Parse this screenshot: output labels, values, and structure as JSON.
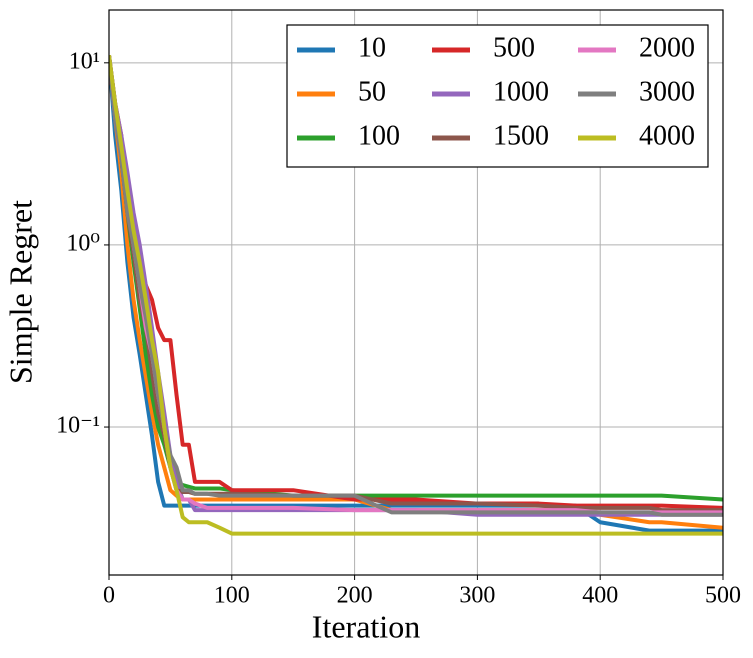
{
  "chart_data": {
    "type": "line",
    "xlabel": "Iteration",
    "ylabel": "Simple Regret",
    "xlim": [
      0,
      500
    ],
    "xticks": [
      0,
      100,
      200,
      300,
      400,
      500
    ],
    "ylim": [
      0.0154,
      19.5
    ],
    "yscale": "log",
    "yticks": [
      {
        "value": 0.1,
        "label": "10⁻¹"
      },
      {
        "value": 1,
        "label": "10⁰"
      },
      {
        "value": 10,
        "label": "10¹"
      }
    ],
    "grid": true,
    "legend": "upper right",
    "legend_columns": 3,
    "x": [
      0,
      5,
      10,
      15,
      20,
      25,
      30,
      35,
      40,
      45,
      50,
      55,
      60,
      65,
      70,
      80,
      90,
      100,
      150,
      200,
      230,
      250,
      300,
      350,
      380,
      400,
      440,
      450,
      500
    ],
    "series": [
      {
        "name": "10",
        "color": "#1f77b4",
        "values": [
          11,
          4,
          2,
          0.8,
          0.4,
          0.25,
          0.15,
          0.09,
          0.05,
          0.037,
          0.037,
          0.037,
          0.037,
          0.037,
          0.037,
          0.037,
          0.037,
          0.037,
          0.037,
          0.037,
          0.037,
          0.037,
          0.037,
          0.037,
          0.037,
          0.03,
          0.027,
          0.027,
          0.027
        ]
      },
      {
        "name": "50",
        "color": "#ff7f0e",
        "values": [
          11,
          5,
          2.5,
          1,
          0.5,
          0.3,
          0.19,
          0.12,
          0.08,
          0.06,
          0.045,
          0.042,
          0.04,
          0.04,
          0.04,
          0.04,
          0.04,
          0.04,
          0.04,
          0.04,
          0.035,
          0.035,
          0.035,
          0.035,
          0.035,
          0.033,
          0.03,
          0.03,
          0.028
        ]
      },
      {
        "name": "100",
        "color": "#2ca02c",
        "values": [
          11,
          6,
          3,
          1.5,
          0.8,
          0.45,
          0.25,
          0.15,
          0.1,
          0.08,
          0.06,
          0.05,
          0.048,
          0.047,
          0.046,
          0.046,
          0.046,
          0.045,
          0.042,
          0.042,
          0.042,
          0.042,
          0.042,
          0.042,
          0.042,
          0.042,
          0.042,
          0.042,
          0.04
        ]
      },
      {
        "name": "500",
        "color": "#d62728",
        "values": [
          11,
          6,
          4,
          2,
          1.2,
          0.8,
          0.6,
          0.5,
          0.35,
          0.3,
          0.3,
          0.15,
          0.08,
          0.08,
          0.05,
          0.05,
          0.05,
          0.045,
          0.045,
          0.04,
          0.04,
          0.04,
          0.038,
          0.038,
          0.037,
          0.037,
          0.037,
          0.037,
          0.036
        ]
      },
      {
        "name": "1000",
        "color": "#9467bd",
        "values": [
          11,
          6,
          4,
          2.5,
          1.5,
          1,
          0.6,
          0.35,
          0.2,
          0.12,
          0.07,
          0.05,
          0.04,
          0.04,
          0.035,
          0.035,
          0.035,
          0.035,
          0.035,
          0.035,
          0.035,
          0.035,
          0.033,
          0.033,
          0.033,
          0.033,
          0.033,
          0.033,
          0.033
        ]
      },
      {
        "name": "1500",
        "color": "#8c564b",
        "values": [
          11,
          5,
          3,
          1.5,
          0.9,
          0.5,
          0.35,
          0.2,
          0.12,
          0.09,
          0.06,
          0.045,
          0.044,
          0.044,
          0.043,
          0.043,
          0.043,
          0.043,
          0.042,
          0.042,
          0.038,
          0.038,
          0.038,
          0.037,
          0.036,
          0.036,
          0.036,
          0.035,
          0.035
        ]
      },
      {
        "name": "2000",
        "color": "#e377c2",
        "values": [
          11,
          5,
          3,
          1.8,
          1,
          0.6,
          0.35,
          0.25,
          0.15,
          0.1,
          0.06,
          0.045,
          0.04,
          0.04,
          0.038,
          0.036,
          0.036,
          0.036,
          0.036,
          0.035,
          0.035,
          0.035,
          0.035,
          0.035,
          0.035,
          0.034,
          0.034,
          0.034,
          0.034
        ]
      },
      {
        "name": "3000",
        "color": "#7f7f7f",
        "values": [
          11,
          5,
          3,
          1.5,
          1,
          0.6,
          0.4,
          0.25,
          0.15,
          0.1,
          0.07,
          0.06,
          0.045,
          0.045,
          0.043,
          0.043,
          0.042,
          0.042,
          0.042,
          0.042,
          0.034,
          0.034,
          0.034,
          0.034,
          0.034,
          0.034,
          0.034,
          0.033,
          0.033
        ]
      },
      {
        "name": "4000",
        "color": "#bcbd22",
        "values": [
          11,
          6,
          3.5,
          2,
          1.2,
          0.8,
          0.5,
          0.3,
          0.2,
          0.1,
          0.06,
          0.045,
          0.032,
          0.03,
          0.03,
          0.03,
          0.028,
          0.026,
          0.026,
          0.026,
          0.026,
          0.026,
          0.026,
          0.026,
          0.026,
          0.026,
          0.026,
          0.026,
          0.026
        ]
      }
    ]
  }
}
